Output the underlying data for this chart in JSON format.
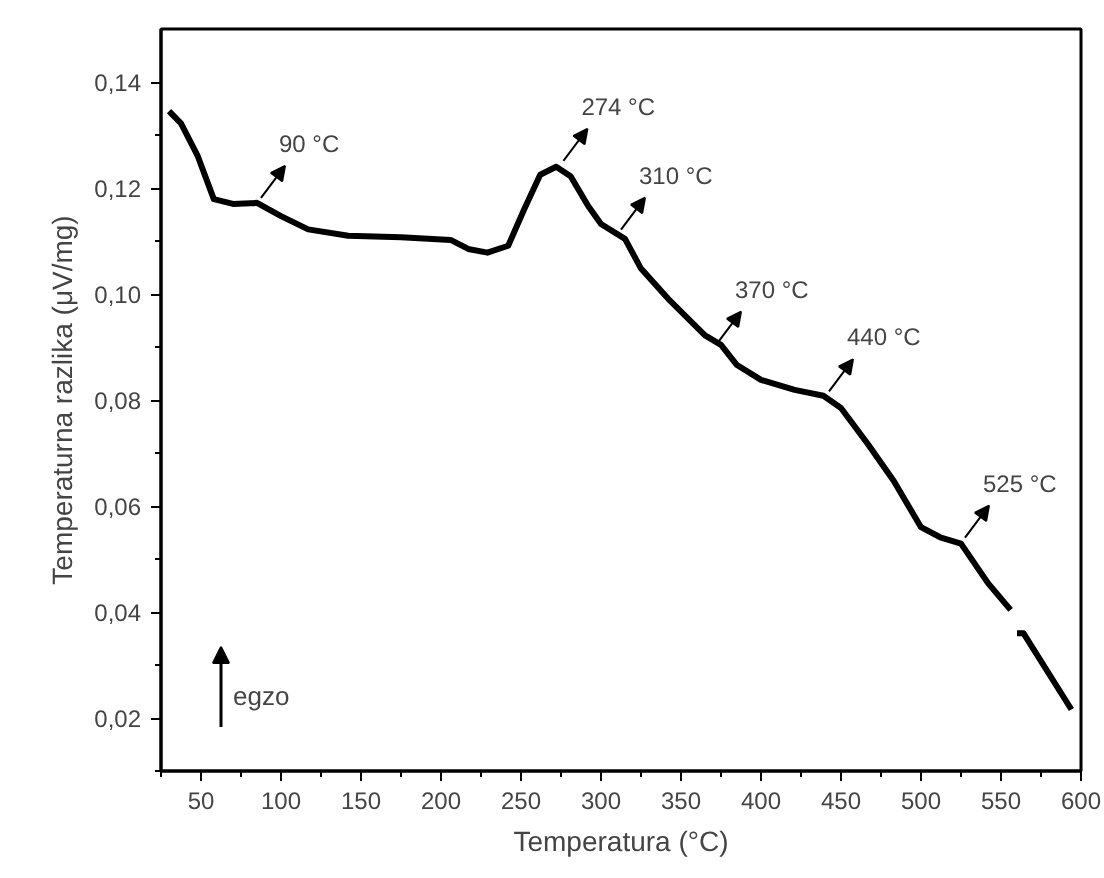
{
  "chart_data": {
    "type": "line",
    "xlabel": "Temperatura (°C)",
    "ylabel": "Temperaturna razlika (μV/mg)",
    "x": [
      30,
      37.5,
      48,
      58,
      70,
      85,
      100,
      117,
      142,
      175,
      206,
      217,
      229,
      242,
      252,
      262,
      272,
      281,
      292,
      300,
      315,
      325,
      342,
      365,
      375,
      385,
      400,
      421,
      439,
      450,
      467,
      483,
      500,
      512,
      525,
      542,
      556,
      558,
      560,
      564,
      594
    ],
    "series": [
      {
        "color": "#000000",
        "values": [
          0.1345,
          0.1322,
          0.126,
          0.1179,
          0.117,
          0.1172,
          0.1147,
          0.1122,
          0.111,
          0.1107,
          0.1102,
          0.1085,
          0.1078,
          0.1091,
          0.116,
          0.1225,
          0.124,
          0.1222,
          0.1166,
          0.1132,
          0.1104,
          0.1048,
          0.0991,
          0.0922,
          0.0904,
          0.0866,
          0.0838,
          0.0819,
          0.0808,
          0.0785,
          0.0716,
          0.0647,
          0.056,
          0.0541,
          0.0529,
          0.0454,
          0.0404,
          null,
          0.036,
          0.036,
          0.0216
        ]
      }
    ],
    "xlim": [
      25,
      600
    ],
    "ylim": [
      0.01,
      0.15
    ],
    "xticks": [
      50,
      100,
      150,
      200,
      250,
      300,
      350,
      400,
      450,
      500,
      550,
      600
    ],
    "yticks": [
      {
        "value": 0.02,
        "label": "0,02"
      },
      {
        "value": 0.04,
        "label": "0,04"
      },
      {
        "value": 0.06,
        "label": "0,06"
      },
      {
        "value": 0.08,
        "label": "0,08"
      },
      {
        "value": 0.1,
        "label": "0,10"
      },
      {
        "value": 0.12,
        "label": "0,12"
      },
      {
        "value": 0.14,
        "label": "0,14"
      }
    ],
    "annotations": [
      {
        "text": "90 °C",
        "x": 85,
        "y": 0.117
      },
      {
        "text": "274 °C",
        "x": 274,
        "y": 0.124
      },
      {
        "text": "310 °C",
        "x": 310,
        "y": 0.111
      },
      {
        "text": "370 °C",
        "x": 370,
        "y": 0.0895
      },
      {
        "text": "440 °C",
        "x": 440,
        "y": 0.0805
      },
      {
        "text": "525 °C",
        "x": 525,
        "y": 0.0529
      },
      "egzo"
    ],
    "grid": false,
    "marker": "none",
    "line_style": "solid"
  }
}
